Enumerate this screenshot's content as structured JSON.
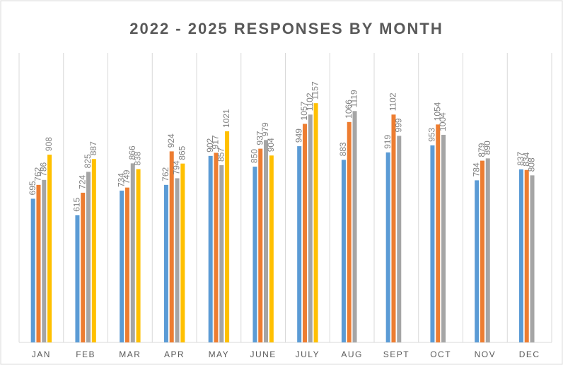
{
  "chart_data": {
    "type": "bar",
    "title": "2022 - 2025 RESPONSES BY MONTH",
    "categories": [
      "JAN",
      "FEB",
      "MAR",
      "APR",
      "MAY",
      "JUNE",
      "JULY",
      "AUG",
      "SEPT",
      "OCT",
      "NOV",
      "DEC"
    ],
    "series": [
      {
        "color": "#5b9bd5",
        "values": [
          695,
          615,
          734,
          762,
          902,
          850,
          949,
          883,
          919,
          953,
          784,
          837
        ]
      },
      {
        "color": "#ed7d31",
        "values": [
          762,
          724,
          749,
          924,
          917,
          937,
          1057,
          1066,
          1102,
          1054,
          879,
          834
        ]
      },
      {
        "color": "#a5a5a5",
        "values": [
          786,
          825,
          866,
          794,
          857,
          979,
          1102,
          1119,
          999,
          1004,
          890,
          808
        ]
      },
      {
        "color": "#ffc000",
        "values": [
          908,
          887,
          838,
          865,
          1021,
          904,
          1157,
          null,
          null,
          null,
          null,
          null
        ]
      }
    ],
    "ylim": [
      0,
      1400
    ],
    "grid": true,
    "value_labels_shown": true
  }
}
